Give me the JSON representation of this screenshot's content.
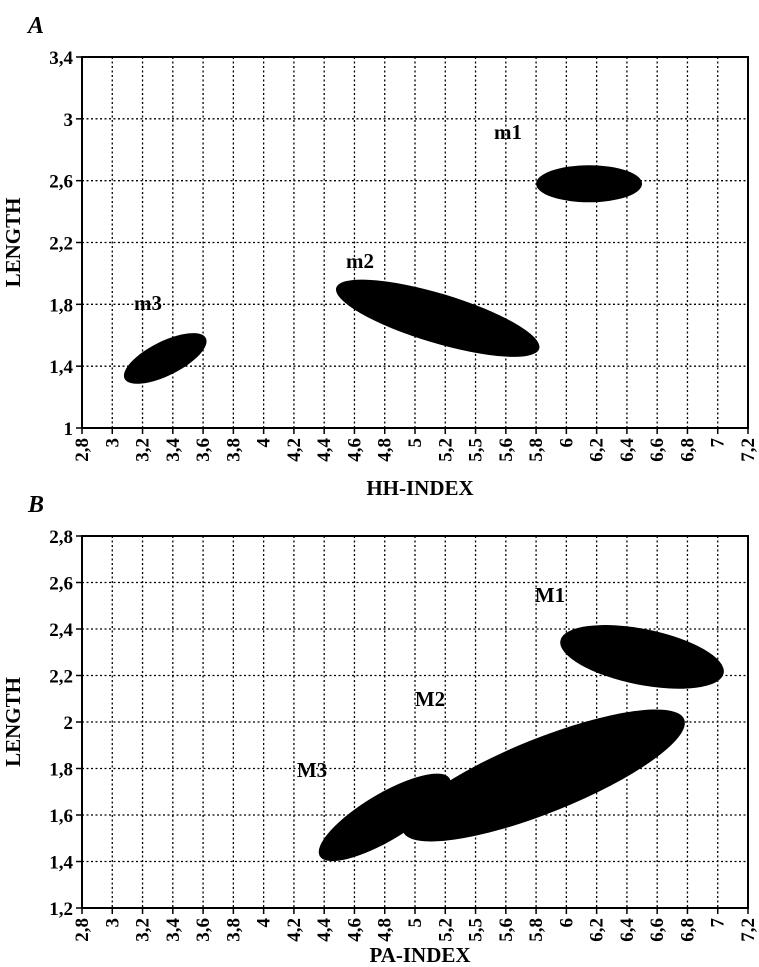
{
  "chart_data": [
    {
      "type": "scatter",
      "panel_label": "A",
      "xlabel": "HH-INDEX",
      "ylabel": "LENGTH",
      "x_ticks": [
        "2,8",
        "3",
        "3,2",
        "3,4",
        "3,6",
        "3,8",
        "4",
        "4,2",
        "4,4",
        "4,6",
        "4,8",
        "5",
        "5,2",
        "5,5",
        "5,6",
        "5,8",
        "6",
        "6,2",
        "6,4",
        "6,6",
        "6,8",
        "7",
        "7,2"
      ],
      "y_ticks": [
        "1",
        "1,4",
        "1,8",
        "2,2",
        "2,6",
        "3",
        "3,4"
      ],
      "ylim": [
        1,
        3.4
      ],
      "grid": true,
      "regions": [
        {
          "label": "m1",
          "x_range": [
            5.8,
            6.5
          ],
          "y_center": 2.58,
          "y_halfwidth": 0.12,
          "tilt": 0
        },
        {
          "label": "m2",
          "x_range": [
            4.45,
            5.85
          ],
          "y_center": 1.71,
          "y_halfwidth": 0.16,
          "tilt": -0.03
        },
        {
          "label": "m3",
          "x_range": [
            3.05,
            3.65
          ],
          "y_center": 1.45,
          "y_halfwidth": 0.11,
          "tilt": 0.05
        }
      ]
    },
    {
      "type": "scatter",
      "panel_label": "B",
      "xlabel": "PA-INDEX",
      "ylabel": "LENGTH",
      "x_ticks": [
        "2,8",
        "3",
        "3,2",
        "3,4",
        "3,6",
        "3,8",
        "4",
        "4,2",
        "4,4",
        "4,6",
        "4,8",
        "5",
        "5,2",
        "5,5",
        "5,6",
        "5,8",
        "6",
        "6,2",
        "6,4",
        "6,6",
        "6,8",
        "7",
        "7,2"
      ],
      "y_ticks": [
        "1,2",
        "1,4",
        "1,6",
        "1,8",
        "2",
        "2,2",
        "2,4",
        "2,6",
        "2,8"
      ],
      "ylim": [
        1.2,
        2.8
      ],
      "grid": true,
      "regions": [
        {
          "label": "M1",
          "x_range": [
            5.95,
            7.05
          ],
          "y_center": 2.28,
          "y_halfwidth": 0.12,
          "tilt": -0.02
        },
        {
          "label": "M2",
          "x_range": [
            4.85,
            6.85
          ],
          "y_center": 1.77,
          "y_halfwidth": 0.16,
          "tilt": 0.04
        },
        {
          "label": "M3",
          "x_range": [
            4.3,
            5.3
          ],
          "y_center": 1.59,
          "y_halfwidth": 0.1,
          "tilt": 0.06
        }
      ]
    }
  ]
}
